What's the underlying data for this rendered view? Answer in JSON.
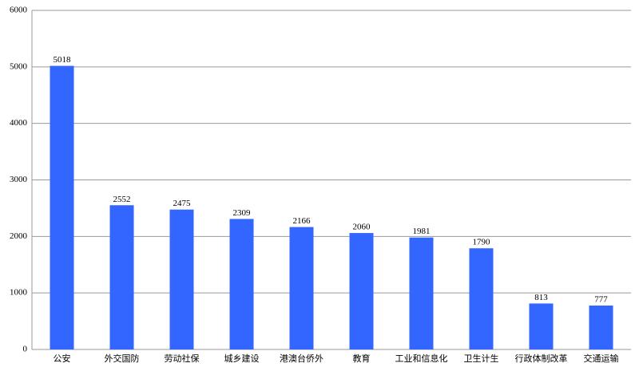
{
  "chart_data": {
    "type": "bar",
    "categories": [
      "公安",
      "外交国防",
      "劳动社保",
      "城乡建设",
      "港澳台侨外",
      "教育",
      "工业和信息化",
      "卫生计生",
      "行政体制改革",
      "交通运输"
    ],
    "values": [
      5018,
      2552,
      2475,
      2309,
      2166,
      2060,
      1981,
      1790,
      813,
      777
    ],
    "color": "#3366ff",
    "ylim": [
      0,
      6000
    ],
    "yticks": [
      0,
      1000,
      2000,
      3000,
      4000,
      5000,
      6000
    ],
    "grid": true
  }
}
